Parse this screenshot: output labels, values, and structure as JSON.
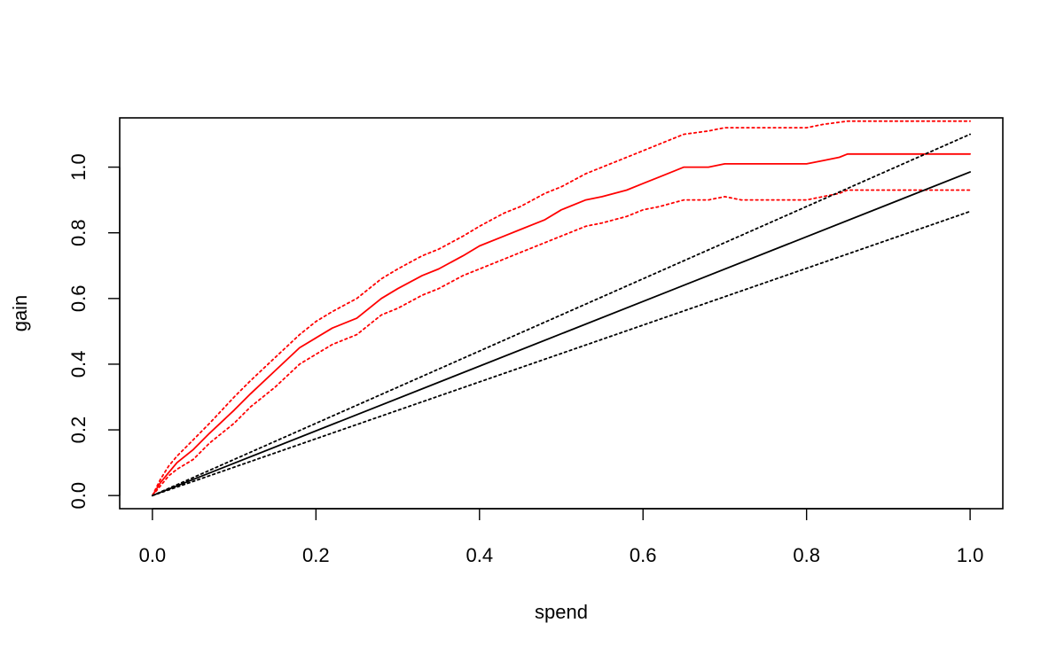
{
  "chart_data": {
    "type": "line",
    "title": "",
    "xlabel": "spend",
    "ylabel": "gain",
    "xlim": [
      -0.04,
      1.04
    ],
    "ylim": [
      -0.04,
      1.15
    ],
    "x_ticks": [
      0.0,
      0.2,
      0.4,
      0.6,
      0.8,
      1.0
    ],
    "x_tick_labels": [
      "0.0",
      "0.2",
      "0.4",
      "0.6",
      "0.8",
      "1.0"
    ],
    "y_ticks": [
      0.0,
      0.2,
      0.4,
      0.6,
      0.8,
      1.0
    ],
    "y_tick_labels": [
      "0.0",
      "0.2",
      "0.4",
      "0.6",
      "0.8",
      "1.0"
    ],
    "grid": false,
    "legend": "none",
    "series": [
      {
        "color": "#ff0000",
        "line_style": "solid",
        "x": [
          0.0,
          0.01,
          0.02,
          0.03,
          0.05,
          0.07,
          0.1,
          0.12,
          0.15,
          0.18,
          0.2,
          0.22,
          0.25,
          0.28,
          0.3,
          0.33,
          0.35,
          0.38,
          0.4,
          0.43,
          0.45,
          0.48,
          0.5,
          0.53,
          0.55,
          0.58,
          0.6,
          0.62,
          0.65,
          0.68,
          0.7,
          0.72,
          0.75,
          0.78,
          0.8,
          0.82,
          0.84,
          0.85,
          0.9,
          0.95,
          1.0
        ],
        "y": [
          0.0,
          0.04,
          0.07,
          0.1,
          0.14,
          0.19,
          0.26,
          0.31,
          0.38,
          0.45,
          0.48,
          0.51,
          0.54,
          0.6,
          0.63,
          0.67,
          0.69,
          0.73,
          0.76,
          0.79,
          0.81,
          0.84,
          0.87,
          0.9,
          0.91,
          0.93,
          0.95,
          0.97,
          1.0,
          1.0,
          1.01,
          1.01,
          1.01,
          1.01,
          1.01,
          1.02,
          1.03,
          1.04,
          1.04,
          1.04,
          1.04
        ]
      },
      {
        "color": "#ff0000",
        "line_style": "dotted",
        "x": [
          0.0,
          0.01,
          0.02,
          0.03,
          0.05,
          0.07,
          0.1,
          0.12,
          0.15,
          0.18,
          0.2,
          0.22,
          0.25,
          0.28,
          0.3,
          0.33,
          0.35,
          0.38,
          0.4,
          0.43,
          0.45,
          0.48,
          0.5,
          0.53,
          0.55,
          0.58,
          0.6,
          0.62,
          0.65,
          0.68,
          0.7,
          0.72,
          0.75,
          0.78,
          0.8,
          0.82,
          0.85,
          0.9,
          0.95,
          1.0
        ],
        "y": [
          0.0,
          0.05,
          0.09,
          0.12,
          0.17,
          0.22,
          0.3,
          0.35,
          0.42,
          0.49,
          0.53,
          0.56,
          0.6,
          0.66,
          0.69,
          0.73,
          0.75,
          0.79,
          0.82,
          0.86,
          0.88,
          0.92,
          0.94,
          0.98,
          1.0,
          1.03,
          1.05,
          1.07,
          1.1,
          1.11,
          1.12,
          1.12,
          1.12,
          1.12,
          1.12,
          1.13,
          1.14,
          1.14,
          1.14,
          1.14
        ]
      },
      {
        "color": "#ff0000",
        "line_style": "dotted",
        "x": [
          0.0,
          0.01,
          0.02,
          0.03,
          0.05,
          0.07,
          0.1,
          0.12,
          0.15,
          0.18,
          0.2,
          0.22,
          0.25,
          0.28,
          0.3,
          0.33,
          0.35,
          0.38,
          0.4,
          0.43,
          0.45,
          0.48,
          0.5,
          0.53,
          0.55,
          0.58,
          0.6,
          0.62,
          0.65,
          0.68,
          0.7,
          0.72,
          0.75,
          0.78,
          0.8,
          0.82,
          0.84,
          0.85,
          0.9,
          0.95,
          1.0
        ],
        "y": [
          0.0,
          0.03,
          0.06,
          0.08,
          0.11,
          0.16,
          0.22,
          0.27,
          0.33,
          0.4,
          0.43,
          0.46,
          0.49,
          0.55,
          0.57,
          0.61,
          0.63,
          0.67,
          0.69,
          0.72,
          0.74,
          0.77,
          0.79,
          0.82,
          0.83,
          0.85,
          0.87,
          0.88,
          0.9,
          0.9,
          0.91,
          0.9,
          0.9,
          0.9,
          0.9,
          0.91,
          0.92,
          0.93,
          0.93,
          0.93,
          0.93
        ]
      },
      {
        "color": "#000000",
        "line_style": "solid",
        "x": [
          0.0,
          1.0
        ],
        "y": [
          0.0,
          0.985
        ]
      },
      {
        "color": "#000000",
        "line_style": "dotted",
        "x": [
          0.0,
          1.0
        ],
        "y": [
          0.0,
          1.1
        ]
      },
      {
        "color": "#000000",
        "line_style": "dotted",
        "x": [
          0.0,
          1.0
        ],
        "y": [
          0.0,
          0.865
        ]
      }
    ]
  }
}
